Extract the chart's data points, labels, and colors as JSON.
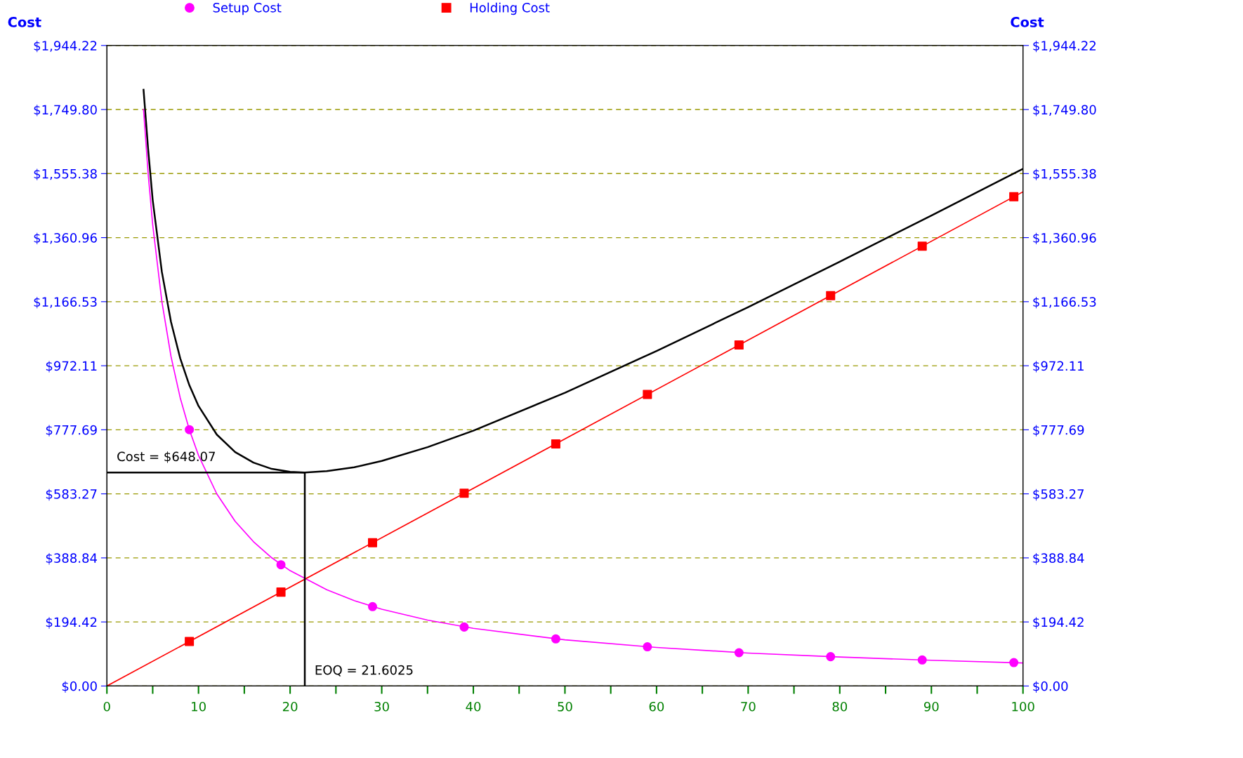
{
  "chart_data": {
    "type": "line",
    "ylabel": "Cost",
    "y2label": "Cost",
    "xlim": [
      0,
      100
    ],
    "xticks": [
      0,
      {
        "value": 5,
        "label": null
      },
      10,
      {
        "value": 15,
        "label": null
      },
      20,
      {
        "value": 25,
        "label": null
      },
      30,
      {
        "value": 35,
        "label": null
      },
      40,
      {
        "value": 45,
        "label": null
      },
      50,
      {
        "value": 55,
        "label": null
      },
      60,
      {
        "value": 65,
        "label": null
      },
      70,
      {
        "value": 75,
        "label": null
      },
      80,
      {
        "value": 85,
        "label": null
      },
      90,
      {
        "value": 95,
        "label": null
      },
      100
    ],
    "ylim": [
      0,
      1944.22
    ],
    "yticks": [
      {
        "value": 0,
        "label": "$0.00"
      },
      {
        "value": 194.42,
        "label": "$194.42"
      },
      {
        "value": 388.84,
        "label": "$388.84"
      },
      {
        "value": 583.27,
        "label": "$583.27"
      },
      {
        "value": 777.69,
        "label": "$777.69"
      },
      {
        "value": 972.11,
        "label": "$972.11"
      },
      {
        "value": 1166.53,
        "label": "$1,166.53"
      },
      {
        "value": 1360.96,
        "label": "$1,360.96"
      },
      {
        "value": 1555.38,
        "label": "$1,555.38"
      },
      {
        "value": 1749.8,
        "label": "$1,749.80"
      },
      {
        "value": 1944.22,
        "label": "$1,944.22"
      }
    ],
    "y2lim": [
      0,
      1944.22
    ],
    "y2ticks": [
      {
        "value": 0,
        "label": "$0.00"
      },
      {
        "value": 194.42,
        "label": "$194.42"
      },
      {
        "value": 388.84,
        "label": "$388.84"
      },
      {
        "value": 583.27,
        "label": "$583.27"
      },
      {
        "value": 777.69,
        "label": "$777.69"
      },
      {
        "value": 972.11,
        "label": "$972.11"
      },
      {
        "value": 1166.53,
        "label": "$1,166.53"
      },
      {
        "value": 1360.96,
        "label": "$1,360.96"
      },
      {
        "value": 1555.38,
        "label": "$1,555.38"
      },
      {
        "value": 1749.8,
        "label": "$1,749.80"
      },
      {
        "value": 1944.22,
        "label": "$1,944.22"
      }
    ],
    "grid": "y",
    "legend": "top",
    "series": [
      {
        "color": "#000000",
        "marker": "none",
        "x": [
          4,
          4.5,
          5,
          6,
          7,
          8,
          9,
          10,
          12,
          14,
          16,
          18,
          20,
          21.6,
          24,
          27,
          30,
          35,
          40,
          50,
          60,
          70,
          80,
          90,
          100
        ],
        "values": [
          1810,
          1630,
          1475,
          1257,
          1105,
          995,
          913,
          850,
          763,
          710,
          678,
          659,
          650,
          648,
          652,
          664,
          683,
          725,
          775,
          890,
          1017,
          1150,
          1288,
          1428,
          1570
        ]
      },
      {
        "color": "#ff00ff",
        "marker": "none",
        "x": [
          4,
          4.5,
          5,
          6,
          7,
          8,
          9,
          10,
          12,
          14,
          16,
          18,
          20,
          24,
          27,
          30,
          35,
          40,
          50,
          60,
          70,
          80,
          90,
          100
        ],
        "values": [
          1750,
          1556,
          1400,
          1167,
          1000,
          875,
          778,
          700,
          583,
          500,
          438,
          389,
          350,
          292,
          259,
          233,
          200,
          175,
          140,
          117,
          100,
          88,
          78,
          70
        ]
      },
      {
        "color": "#ff0000",
        "marker": "none",
        "x": [
          0,
          100
        ],
        "values": [
          0,
          1500
        ]
      },
      {
        "color": "#000000",
        "marker": "none",
        "x": [
          0,
          21.6025,
          21.6025
        ],
        "values": [
          648.07,
          648.07,
          0
        ]
      },
      {
        "type": "scatter",
        "name": "Setup Cost",
        "color": "#ff00ff",
        "marker": "circle",
        "x": [
          9,
          19,
          29,
          39,
          49,
          59,
          69,
          79,
          89,
          99
        ],
        "values": [
          778,
          368,
          241,
          179,
          143,
          119,
          101,
          89,
          79,
          71
        ]
      },
      {
        "type": "scatter",
        "name": "Holding Cost",
        "color": "#ff0000",
        "marker": "square",
        "x": [
          9,
          19,
          29,
          39,
          49,
          59,
          69,
          79,
          89,
          99
        ],
        "values": [
          135,
          285,
          435,
          585,
          735,
          885,
          1035,
          1185,
          1335,
          1485
        ]
      }
    ],
    "annotations": [
      {
        "text": "Cost = $648.07",
        "x": 0,
        "y": 648.07
      },
      {
        "text": "EOQ = 21.6025",
        "x": 21.6025,
        "y": 0
      }
    ]
  }
}
